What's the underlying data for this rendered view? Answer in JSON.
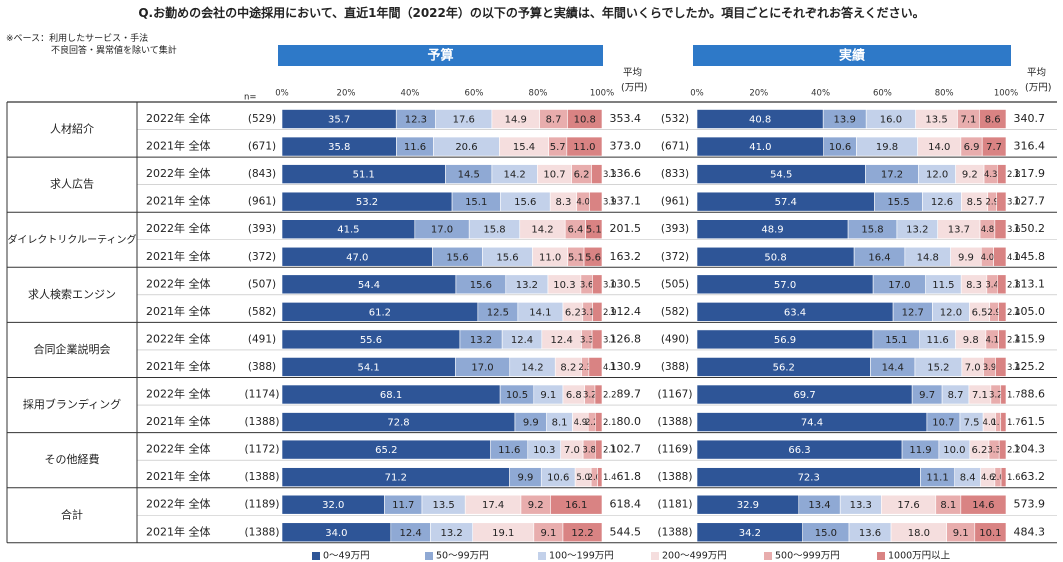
{
  "title": "Q.お勤めの会社の中途採用において、直近1年間（2022年）の以下の予算と実績は、年間いくらでしたか。項目ごとにそれぞれお答えください。",
  "note": "※ベース：利用したサービス・手法\n　　　　　不良回答・異常値を除いて集計",
  "n_label": "n=",
  "avg_label_line1": "平均",
  "avg_label_line2": "(万円)",
  "colors": [
    "#2e5597",
    "#8fa9d4",
    "#c3d1ea",
    "#f5dede",
    "#e8adad",
    "#d98383"
  ],
  "row_border_color": "#333333",
  "chart_data": {
    "type": "stacked-bar-100",
    "panels": [
      "予算",
      "実績"
    ],
    "ticks": [
      "0%",
      "20%",
      "40%",
      "60%",
      "80%",
      "100%"
    ],
    "legend": [
      "0～49万円",
      "50～99万円",
      "100～199万円",
      "200～499万円",
      "500～999万円",
      "1000万円以上"
    ],
    "categories": [
      "人材紹介",
      "求人広告",
      "ダイレクトリクルーティング",
      "求人検索エンジン",
      "合同企業説明会",
      "採用ブランディング",
      "その他経費",
      "合計"
    ],
    "rows": [
      {
        "category": "人材紹介",
        "year": "2022年 全体",
        "n_budget": "(529)",
        "budget": [
          35.7,
          12.3,
          17.6,
          14.9,
          8.7,
          10.8
        ],
        "budget_avg": "353.4",
        "n_actual": "(532)",
        "actual": [
          40.8,
          13.9,
          16.0,
          13.5,
          7.1,
          8.6
        ],
        "actual_avg": "340.7"
      },
      {
        "category": "人材紹介",
        "year": "2021年 全体",
        "n_budget": "(671)",
        "budget": [
          35.8,
          11.6,
          20.6,
          15.4,
          5.7,
          11.0
        ],
        "budget_avg": "373.0",
        "n_actual": "(671)",
        "actual": [
          41.0,
          10.6,
          19.8,
          14.0,
          6.9,
          7.7
        ],
        "actual_avg": "316.4"
      },
      {
        "category": "求人広告",
        "year": "2022年 全体",
        "n_budget": "(843)",
        "budget": [
          51.1,
          14.5,
          14.2,
          10.7,
          6.2,
          3.3
        ],
        "budget_avg": "136.6",
        "n_actual": "(833)",
        "actual": [
          54.5,
          17.2,
          12.0,
          9.2,
          4.3,
          2.8
        ],
        "actual_avg": "117.9"
      },
      {
        "category": "求人広告",
        "year": "2021年 全体",
        "n_budget": "(961)",
        "budget": [
          53.2,
          15.1,
          15.6,
          8.3,
          4.0,
          3.9
        ],
        "budget_avg": "137.1",
        "n_actual": "(961)",
        "actual": [
          57.4,
          15.5,
          12.6,
          8.5,
          2.9,
          3.0
        ],
        "actual_avg": "127.7"
      },
      {
        "category": "ダイレクトリクルーティング",
        "year": "2022年 全体",
        "n_budget": "(393)",
        "budget": [
          41.5,
          17.0,
          15.8,
          14.2,
          6.4,
          5.1
        ],
        "budget_avg": "201.5",
        "n_actual": "(393)",
        "actual": [
          48.9,
          15.8,
          13.2,
          13.7,
          4.8,
          3.6
        ],
        "actual_avg": "150.2"
      },
      {
        "category": "ダイレクトリクルーティング",
        "year": "2021年 全体",
        "n_budget": "(372)",
        "budget": [
          47.0,
          15.6,
          15.6,
          11.0,
          5.1,
          5.6
        ],
        "budget_avg": "163.2",
        "n_actual": "(372)",
        "actual": [
          50.8,
          16.4,
          14.8,
          9.9,
          4.0,
          4.0
        ],
        "actual_avg": "145.8"
      },
      {
        "category": "求人検索エンジン",
        "year": "2022年 全体",
        "n_budget": "(507)",
        "budget": [
          54.4,
          15.6,
          13.2,
          10.3,
          3.6,
          3.0
        ],
        "budget_avg": "130.5",
        "n_actual": "(505)",
        "actual": [
          57.0,
          17.0,
          11.5,
          8.3,
          3.4,
          2.8
        ],
        "actual_avg": "113.1"
      },
      {
        "category": "求人検索エンジン",
        "year": "2021年 全体",
        "n_budget": "(582)",
        "budget": [
          61.2,
          12.5,
          14.1,
          6.2,
          3.1,
          2.9
        ],
        "budget_avg": "112.4",
        "n_actual": "(582)",
        "actual": [
          63.4,
          12.7,
          12.0,
          6.5,
          2.9,
          2.4
        ],
        "actual_avg": "105.0"
      },
      {
        "category": "合同企業説明会",
        "year": "2022年 全体",
        "n_budget": "(491)",
        "budget": [
          55.6,
          13.2,
          12.4,
          12.4,
          3.3,
          3.1
        ],
        "budget_avg": "126.8",
        "n_actual": "(490)",
        "actual": [
          56.9,
          15.1,
          11.6,
          9.8,
          4.1,
          2.4
        ],
        "actual_avg": "115.9"
      },
      {
        "category": "合同企業説明会",
        "year": "2021年 全体",
        "n_budget": "(388)",
        "budget": [
          54.1,
          17.0,
          14.2,
          8.2,
          2.3,
          4.1
        ],
        "budget_avg": "130.9",
        "n_actual": "(388)",
        "actual": [
          56.2,
          14.4,
          15.2,
          7.0,
          3.9,
          3.4
        ],
        "actual_avg": "125.2"
      },
      {
        "category": "採用ブランディング",
        "year": "2022年 全体",
        "n_budget": "(1174)",
        "budget": [
          68.1,
          10.5,
          9.1,
          6.8,
          3.2,
          2.2
        ],
        "budget_avg": "89.7",
        "n_actual": "(1167)",
        "actual": [
          69.7,
          9.7,
          8.7,
          7.1,
          3.2,
          1.7
        ],
        "actual_avg": "88.6"
      },
      {
        "category": "採用ブランディング",
        "year": "2021年 全体",
        "n_budget": "(1388)",
        "budget": [
          72.8,
          9.9,
          8.1,
          4.9,
          2.2,
          2.1
        ],
        "budget_avg": "80.0",
        "n_actual": "(1388)",
        "actual": [
          74.4,
          10.7,
          7.5,
          4.0,
          1.7,
          1.7
        ],
        "actual_avg": "61.5"
      },
      {
        "category": "その他経費",
        "year": "2022年 全体",
        "n_budget": "(1172)",
        "budget": [
          65.2,
          11.6,
          10.3,
          7.0,
          3.8,
          2.1
        ],
        "budget_avg": "102.7",
        "n_actual": "(1169)",
        "actual": [
          66.3,
          11.9,
          10.0,
          6.2,
          3.3,
          2.2
        ],
        "actual_avg": "104.3"
      },
      {
        "category": "その他経費",
        "year": "2021年 全体",
        "n_budget": "(1388)",
        "budget": [
          71.2,
          9.9,
          10.6,
          5.0,
          2.0,
          1.4
        ],
        "budget_avg": "61.8",
        "n_actual": "(1388)",
        "actual": [
          72.3,
          11.1,
          8.4,
          4.6,
          2.0,
          1.6
        ],
        "actual_avg": "63.2"
      },
      {
        "category": "合計",
        "year": "2022年 全体",
        "n_budget": "(1189)",
        "budget": [
          32.0,
          11.7,
          13.5,
          17.4,
          9.2,
          16.1
        ],
        "budget_avg": "618.4",
        "n_actual": "(1181)",
        "actual": [
          32.9,
          13.4,
          13.3,
          17.6,
          8.1,
          14.6
        ],
        "actual_avg": "573.9"
      },
      {
        "category": "合計",
        "year": "2021年 全体",
        "n_budget": "(1388)",
        "budget": [
          34.0,
          12.4,
          13.2,
          19.1,
          9.1,
          12.2
        ],
        "budget_avg": "544.5",
        "n_actual": "(1388)",
        "actual": [
          34.2,
          15.0,
          13.6,
          18.0,
          9.1,
          10.1
        ],
        "actual_avg": "484.3"
      }
    ]
  }
}
